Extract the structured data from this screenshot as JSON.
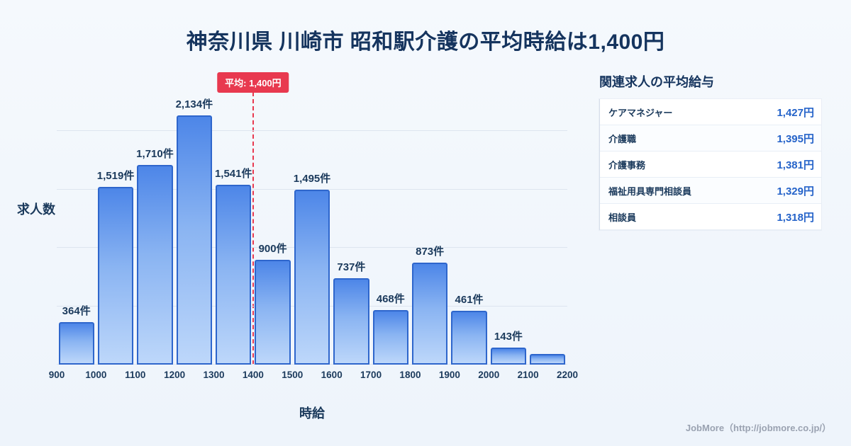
{
  "title": "神奈川県 川崎市 昭和駅介護の平均時給は1,400円",
  "chart_data": {
    "type": "bar",
    "title": "神奈川県 川崎市 昭和駅介護の平均時給は1,400円",
    "ylabel": "求人数",
    "xlabel": "時給",
    "x_ticks": [
      "900",
      "1000",
      "1100",
      "1200",
      "1300",
      "1400",
      "1500",
      "1600",
      "1700",
      "1800",
      "1900",
      "2000",
      "2100",
      "2200"
    ],
    "values": [
      364,
      1519,
      1710,
      2134,
      1541,
      900,
      1495,
      737,
      468,
      873,
      461,
      143,
      90
    ],
    "labels": [
      "364件",
      "1,519件",
      "1,710件",
      "2,134件",
      "1,541件",
      "900件",
      "1,495件",
      "737件",
      "468件",
      "873件",
      "461件",
      "143件",
      ""
    ],
    "ylim": [
      0,
      2200
    ],
    "grid": "on",
    "average": {
      "label": "平均: 1,400円",
      "x_value": 1400
    },
    "colors": {
      "bar_top": "#4d86e8",
      "bar_bottom": "#bdd7fa",
      "bar_border": "#2e66cc",
      "average_line": "#e8394f",
      "value_text": "#2563c9",
      "title_text": "#15345e",
      "grid": "#dde5ef"
    }
  },
  "panel": {
    "title": "関連求人の平均給与",
    "rows": [
      {
        "name": "ケアマネジャー",
        "value": "1,427円"
      },
      {
        "name": "介護職",
        "value": "1,395円"
      },
      {
        "name": "介護事務",
        "value": "1,381円"
      },
      {
        "name": "福祉用具専門相談員",
        "value": "1,329円"
      },
      {
        "name": "相談員",
        "value": "1,318円"
      }
    ]
  },
  "footer": {
    "credit": "JobMore（http://jobmore.co.jp/）"
  }
}
